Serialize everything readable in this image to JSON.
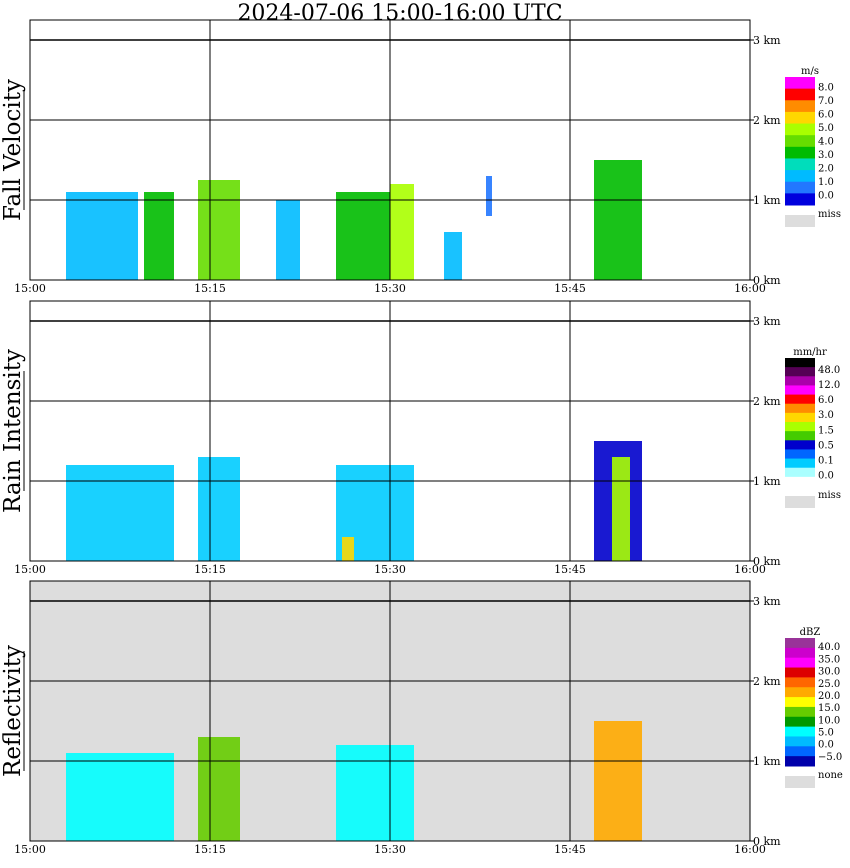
{
  "title": "2024-07-06  15:00-16:00 UTC",
  "chart_data": [
    {
      "type": "heatmap",
      "panel": "Fall Velocity",
      "ylabel": "Fall Velocity",
      "xticks": [
        "15:00",
        "15:15",
        "15:30",
        "15:45",
        "16:00"
      ],
      "yticks": [
        "0 km",
        "1 km",
        "2 km",
        "3 km"
      ],
      "ylim": [
        0,
        3.3
      ],
      "background": "#ffffff",
      "legend": {
        "unit": "m/s",
        "colors": [
          "#ff00ff",
          "#ff0000",
          "#ff8c00",
          "#ffd700",
          "#aaff00",
          "#66dd00",
          "#00bb00",
          "#00ddbb",
          "#00bbff",
          "#2277ff",
          "#0000dd"
        ],
        "labels": [
          "8.0",
          "7.0",
          "6.0",
          "5.0",
          "4.0",
          "3.0",
          "2.0",
          "1.0",
          "0.0"
        ],
        "miss_color": "#dddddd",
        "miss_label": "miss"
      },
      "cells": [
        {
          "x0": 3,
          "x1": 9,
          "y0": 0.0,
          "y1": 1.1,
          "v": 2.0
        },
        {
          "x0": 9.5,
          "x1": 12,
          "y0": 0.0,
          "y1": 1.1,
          "v": 3.0
        },
        {
          "x0": 14,
          "x1": 17.5,
          "y0": 0.0,
          "y1": 1.25,
          "v": 4.5
        },
        {
          "x0": 20.5,
          "x1": 22.5,
          "y0": 0.0,
          "y1": 1.0,
          "v": 2.5
        },
        {
          "x0": 25.5,
          "x1": 30,
          "y0": 0.0,
          "y1": 1.1,
          "v": 3.0
        },
        {
          "x0": 30,
          "x1": 32,
          "y0": 0.0,
          "y1": 1.2,
          "v": 5.5
        },
        {
          "x0": 34.5,
          "x1": 36,
          "y0": 0.0,
          "y1": 0.6,
          "v": 2.5
        },
        {
          "x0": 38,
          "x1": 38.5,
          "y0": 0.8,
          "y1": 1.3,
          "v": 1.5
        },
        {
          "x0": 47,
          "x1": 51,
          "y0": 0.0,
          "y1": 1.5,
          "v": 3.5
        }
      ]
    },
    {
      "type": "heatmap",
      "panel": "Rain Intensity",
      "ylabel": "Rain Intensity",
      "xticks": [
        "15:00",
        "15:15",
        "15:30",
        "15:45",
        "16:00"
      ],
      "yticks": [
        "0 km",
        "1 km",
        "2 km",
        "3 km"
      ],
      "ylim": [
        0,
        3.3
      ],
      "background": "#ffffff",
      "legend": {
        "unit": "mm/hr",
        "colors": [
          "#000000",
          "#550055",
          "#aa00aa",
          "#ff00ff",
          "#ff0000",
          "#ff8c00",
          "#ffd700",
          "#aaff00",
          "#44cc00",
          "#0000cc",
          "#0066ff",
          "#00ccff",
          "#aaffff",
          "#ffffff"
        ],
        "labels": [
          "48.0",
          "12.0",
          "6.0",
          "3.0",
          "1.5",
          "0.5",
          "0.1",
          "0.0"
        ],
        "miss_color": "#dddddd",
        "miss_label": "miss"
      },
      "cells": [
        {
          "x0": 3,
          "x1": 12,
          "y0": 0.0,
          "y1": 1.2,
          "v": 0.1
        },
        {
          "x0": 14,
          "x1": 17.5,
          "y0": 0.0,
          "y1": 1.3,
          "v": 0.1
        },
        {
          "x0": 25.5,
          "x1": 32,
          "y0": 0.0,
          "y1": 1.2,
          "v": 0.2
        },
        {
          "x0": 26,
          "x1": 27,
          "y0": 0.0,
          "y1": 0.3,
          "v": 3.0
        },
        {
          "x0": 47,
          "x1": 51,
          "y0": 0.0,
          "y1": 1.5,
          "v": 0.5
        },
        {
          "x0": 48.5,
          "x1": 50,
          "y0": 0.0,
          "y1": 1.3,
          "v": 1.5
        }
      ]
    },
    {
      "type": "heatmap",
      "panel": "Reflectivity",
      "ylabel": "Reflectivity",
      "xticks": [
        "15:00",
        "15:15",
        "15:30",
        "15:45",
        "16:00"
      ],
      "yticks": [
        "0 km",
        "1 km",
        "2 km",
        "3 km"
      ],
      "ylim": [
        0,
        3.3
      ],
      "background": "#dddddd",
      "legend": {
        "unit": "dBZ",
        "colors": [
          "#993399",
          "#cc00cc",
          "#ff00ff",
          "#dd0000",
          "#ff6600",
          "#ffaa00",
          "#ffff00",
          "#66cc00",
          "#009900",
          "#00ffff",
          "#00bbff",
          "#0066ff",
          "#0000aa"
        ],
        "labels": [
          "40.0",
          "35.0",
          "30.0",
          "25.0",
          "20.0",
          "15.0",
          "10.0",
          "5.0",
          "0.0",
          "−5.0"
        ],
        "miss_color": "#dddddd",
        "miss_label": "none"
      },
      "cells": [
        {
          "x0": 3,
          "x1": 12,
          "y0": 0.0,
          "y1": 1.1,
          "v": 5.0
        },
        {
          "x0": 14,
          "x1": 17.5,
          "y0": 0.0,
          "y1": 1.3,
          "v": 15.0
        },
        {
          "x0": 25.5,
          "x1": 32,
          "y0": 0.0,
          "y1": 1.2,
          "v": 5.0
        },
        {
          "x0": 47,
          "x1": 51,
          "y0": 0.0,
          "y1": 1.5,
          "v": 20.0
        }
      ]
    }
  ]
}
